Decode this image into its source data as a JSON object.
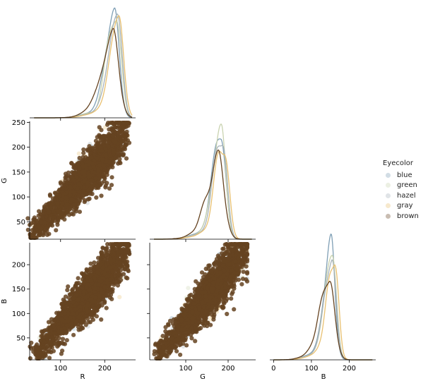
{
  "chart_data": {
    "type": "scatter",
    "kind": "pairplot-corner",
    "variables": [
      "R",
      "G",
      "B"
    ],
    "legend": {
      "title": "Eyecolor",
      "placement": "center-right",
      "entries": [
        {
          "name": "blue",
          "color": "#7f9fb5"
        },
        {
          "name": "green",
          "color": "#c9d3b0"
        },
        {
          "name": "hazel",
          "color": "#a7b3ba"
        },
        {
          "name": "gray",
          "color": "#e8c070"
        },
        {
          "name": "brown",
          "color": "#654321"
        }
      ]
    },
    "axes": {
      "R": {
        "label": "R",
        "range": [
          30,
          270
        ],
        "ticks": [
          100,
          200
        ]
      },
      "G_y": {
        "label": "G",
        "range": [
          15,
          252
        ],
        "ticks": [
          50,
          100,
          150,
          200,
          250
        ]
      },
      "G_x": {
        "label": "G",
        "range": [
          15,
          265
        ],
        "ticks": [
          100,
          200
        ]
      },
      "B_y": {
        "label": "B",
        "range": [
          5,
          245
        ],
        "ticks": [
          50,
          100,
          150,
          200
        ]
      },
      "B_x": {
        "label": "B",
        "range": [
          -10,
          270
        ],
        "ticks": [
          0,
          100,
          200
        ]
      }
    },
    "density_peaks": {
      "R": {
        "blue": 222,
        "green": 226,
        "hazel": 228,
        "gray": 232,
        "brown": 218
      },
      "G": {
        "blue": 183,
        "green": 184,
        "hazel": 186,
        "gray": 190,
        "brown": 177
      },
      "B": {
        "blue": 152,
        "green": 155,
        "hazel": 154,
        "gray": 160,
        "brown": 148
      }
    },
    "scatter": {
      "G_vs_R": {
        "x_range": [
          40,
          258
        ],
        "y_range": [
          28,
          240
        ],
        "trend": "positive"
      },
      "B_vs_R": {
        "x_range": [
          45,
          258
        ],
        "y_range": [
          18,
          237
        ],
        "trend": "positive"
      },
      "B_vs_G": {
        "x_range": [
          40,
          245
        ],
        "y_range": [
          18,
          237
        ],
        "trend": "positive"
      }
    },
    "grid": false
  }
}
